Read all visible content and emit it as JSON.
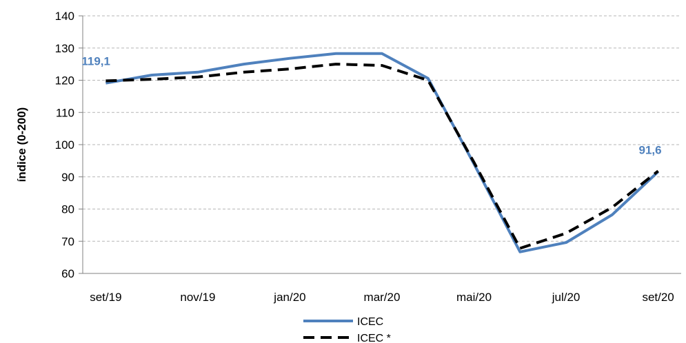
{
  "chart_data": {
    "type": "line",
    "ylabel": "índice (0-200)",
    "xlabel": "",
    "ylim": [
      60,
      140
    ],
    "yticks": [
      60,
      70,
      80,
      90,
      100,
      110,
      120,
      130,
      140
    ],
    "x": [
      "set/19",
      "out/19",
      "nov/19",
      "dez/19",
      "jan/20",
      "fev/20",
      "mar/20",
      "abr/20",
      "mai/20",
      "jun/20",
      "jul/20",
      "ago/20",
      "set/20"
    ],
    "xtick_labels": [
      "set/19",
      "",
      "nov/19",
      "",
      "jan/20",
      "",
      "mar/20",
      "",
      "mai/20",
      "",
      "jul/20",
      "",
      "set/20"
    ],
    "series": [
      {
        "name": "ICEC",
        "color": "#4f81bd",
        "style": "solid",
        "values": [
          119.1,
          121.6,
          122.5,
          125.0,
          126.8,
          128.3,
          128.3,
          120.6,
          94.0,
          66.7,
          69.6,
          78.2,
          91.6
        ]
      },
      {
        "name": "ICEC *",
        "color": "#000000",
        "style": "dashed",
        "values": [
          119.8,
          120.3,
          121.0,
          122.5,
          123.5,
          125.0,
          124.6,
          120.0,
          94.5,
          67.8,
          72.5,
          80.5,
          91.8
        ]
      }
    ],
    "annotations": [
      {
        "series": 0,
        "index": 0,
        "text": "119,1"
      },
      {
        "series": 0,
        "index": 12,
        "text": "91,6"
      }
    ],
    "grid": "horizontal dashed",
    "legend": "bottom-center"
  }
}
